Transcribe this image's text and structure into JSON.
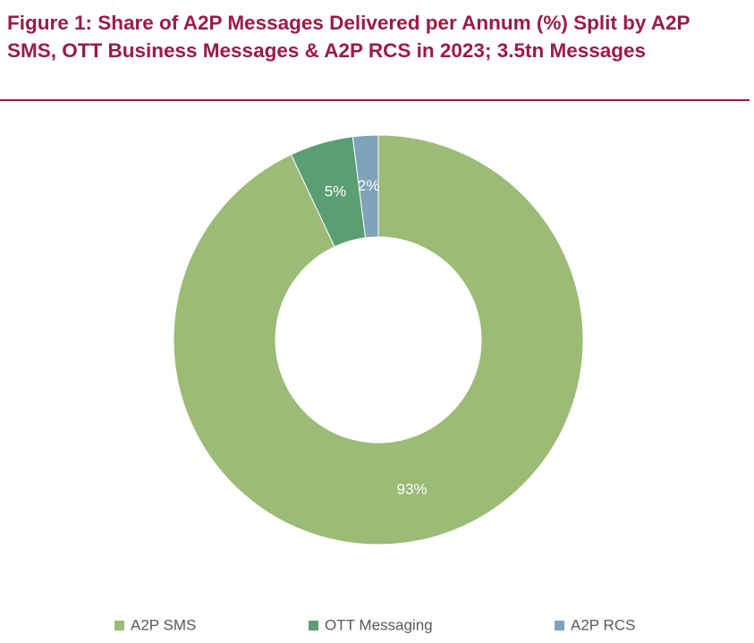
{
  "chart_data": {
    "type": "pie",
    "title": "Figure 1: Share of A2P Messages Delivered per Annum (%) Split by A2P SMS, OTT Business Messages & A2P RCS in 2023; 3.5tn Messages",
    "categories": [
      "A2P SMS",
      "OTT Messaging",
      "A2P RCS"
    ],
    "values": [
      93,
      5,
      2
    ],
    "value_labels": [
      "93%",
      "5%",
      "2%"
    ],
    "colors": [
      "#9bbb76",
      "#5a9e74",
      "#7fa3b8"
    ],
    "donut": true,
    "legend": "bottom"
  }
}
